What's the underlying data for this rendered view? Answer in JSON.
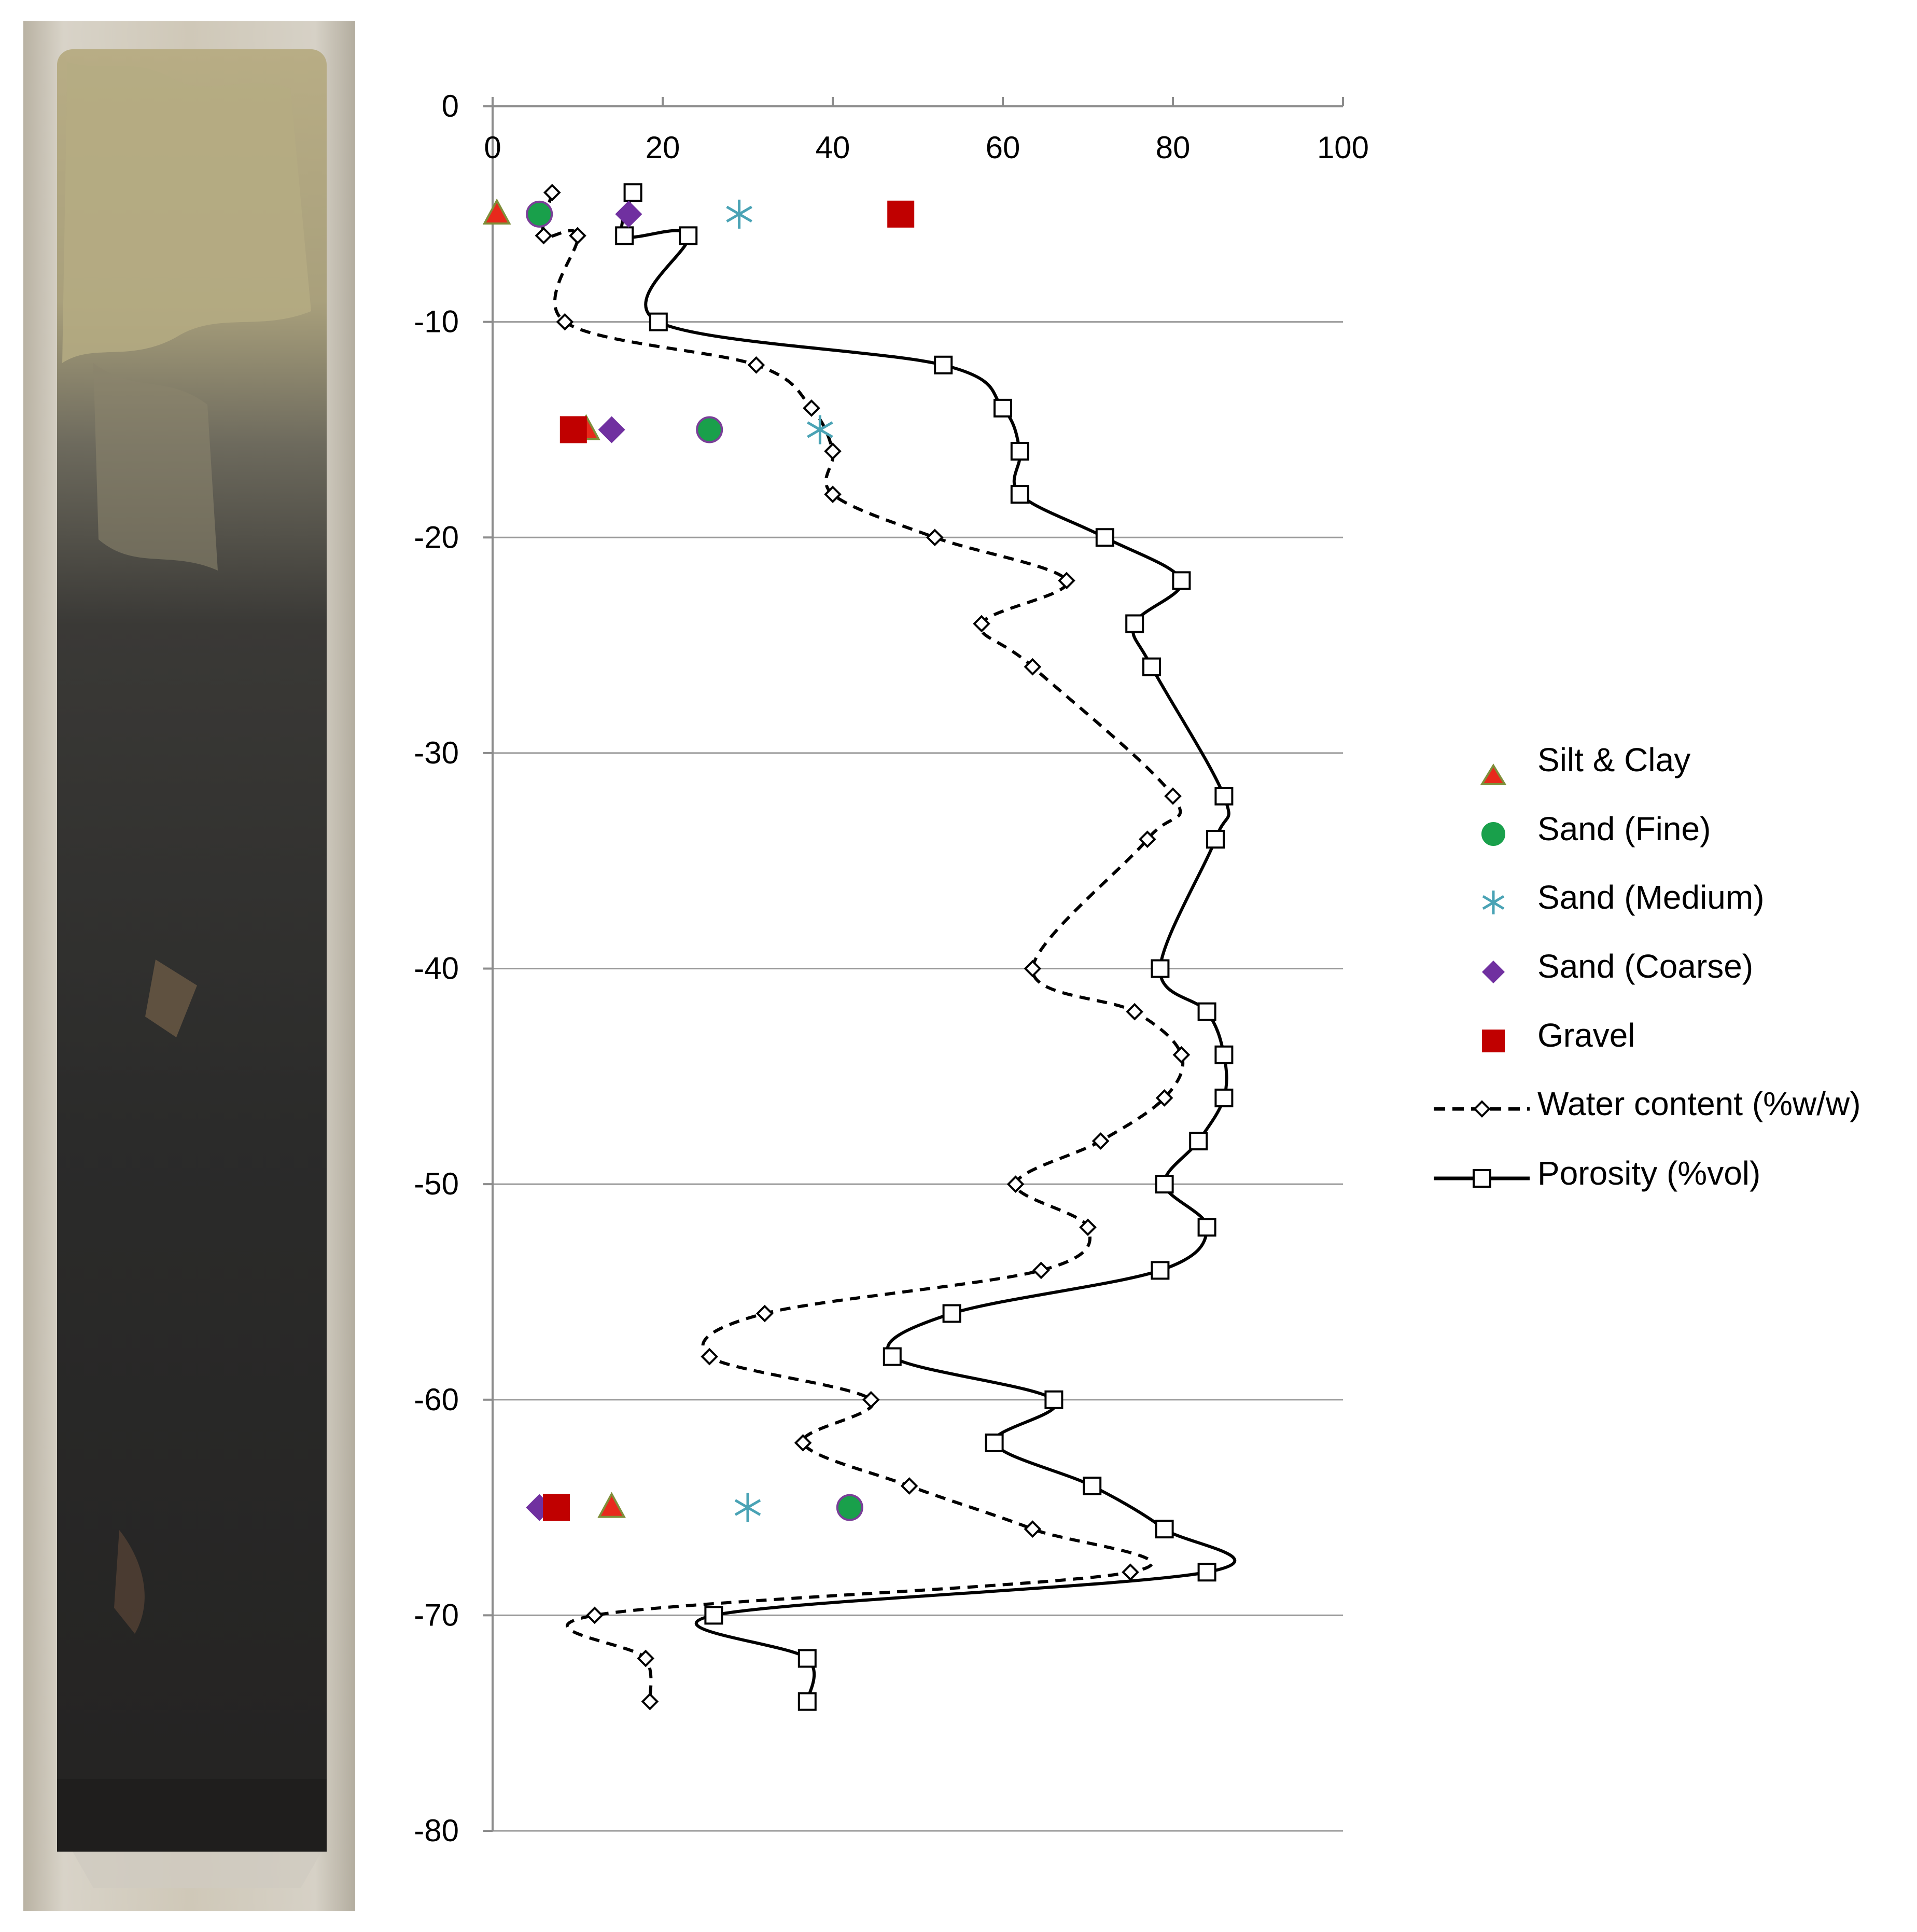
{
  "chart_data": {
    "type": "scatter",
    "title": "",
    "xlabel": "",
    "ylabel": "",
    "xlim": [
      0,
      100
    ],
    "ylim": [
      -80,
      0
    ],
    "x_ticks": [
      0,
      20,
      40,
      60,
      80,
      100
    ],
    "y_ticks": [
      0,
      -10,
      -20,
      -30,
      -40,
      -50,
      -60,
      -70,
      -80
    ],
    "x_tick_labels": [
      "0",
      "20",
      "40",
      "60",
      "80",
      "100"
    ],
    "y_tick_labels": [
      "0",
      "-10",
      "-20",
      "-30",
      "-40",
      "-50",
      "-60",
      "-70",
      "-80"
    ],
    "x_axis_position": "top",
    "grid": "horizontal",
    "legend_position": "right",
    "core_photo": "sediment-core",
    "series": [
      {
        "name": "Silt & Clay",
        "marker": "triangle",
        "color": "#e8291c",
        "edge": "#7f8f3a",
        "x": [
          0.5,
          11,
          14
        ],
        "y": [
          -5,
          -15,
          -65
        ]
      },
      {
        "name": "Sand (Fine)",
        "marker": "circle",
        "color": "#19a04b",
        "edge": "#7a3f98",
        "x": [
          5.5,
          25.5,
          42
        ],
        "y": [
          -5,
          -15,
          -65
        ]
      },
      {
        "name": "Sand (Medium)",
        "marker": "asterisk",
        "color": "#4aa3b5",
        "x": [
          29,
          38.5,
          30
        ],
        "y": [
          -5,
          -15,
          -65
        ]
      },
      {
        "name": "Sand (Coarse)",
        "marker": "diamond",
        "color": "#7030a0",
        "x": [
          16,
          14,
          5.5
        ],
        "y": [
          -5,
          -15,
          -65
        ]
      },
      {
        "name": "Gravel",
        "marker": "square",
        "color": "#c00000",
        "x": [
          48,
          9.5,
          7.5
        ],
        "y": [
          -5,
          -15,
          -65
        ]
      },
      {
        "name": "Water content (%w/w)",
        "marker": "diamond-open",
        "line": "dashed",
        "color": "#000000",
        "x": [
          7,
          6,
          10,
          8.5,
          31,
          37.5,
          40,
          40,
          52,
          67.5,
          57.5,
          63.5,
          80,
          77,
          63.5,
          75.5,
          81,
          79,
          71.5,
          61.5,
          70,
          64.5,
          32,
          25.5,
          44.5,
          36.5,
          49,
          63.5,
          75,
          12,
          18,
          18.5
        ],
        "y": [
          -4,
          -6,
          -6,
          -10,
          -12,
          -14,
          -16,
          -18,
          -20,
          -22,
          -24,
          -26,
          -32,
          -34,
          -40,
          -42,
          -44,
          -46,
          -48,
          -50,
          -52,
          -54,
          -56,
          -58,
          -60,
          -62,
          -64,
          -66,
          -68,
          -70,
          -72,
          -74
        ]
      },
      {
        "name": "Porosity (%vol)",
        "marker": "square-open",
        "line": "solid",
        "color": "#000000",
        "x": [
          16.5,
          15.5,
          23,
          19.5,
          53,
          60,
          62,
          62,
          72,
          81,
          75.5,
          77.5,
          86,
          85,
          78.5,
          84,
          86,
          86,
          83,
          79,
          84,
          78.5,
          54,
          47,
          66,
          59,
          70.5,
          79,
          84,
          26,
          37,
          37
        ],
        "y": [
          -4,
          -6,
          -6,
          -10,
          -12,
          -14,
          -16,
          -18,
          -20,
          -22,
          -24,
          -26,
          -32,
          -34,
          -40,
          -42,
          -44,
          -46,
          -48,
          -50,
          -52,
          -54,
          -56,
          -58,
          -60,
          -62,
          -64,
          -66,
          -68,
          -70,
          -72,
          -74
        ]
      }
    ]
  }
}
